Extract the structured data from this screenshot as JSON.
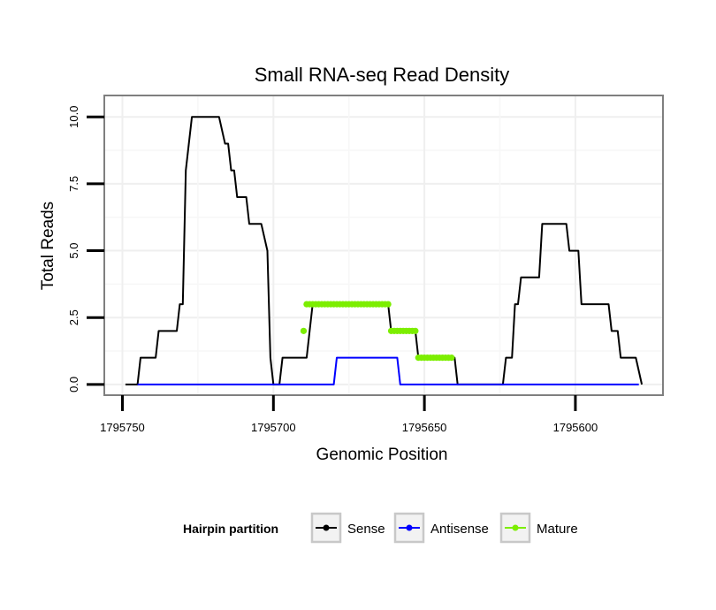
{
  "chart_data": {
    "type": "line",
    "title": "Small RNA-seq Read Density",
    "xlabel": "Genomic Position",
    "ylabel": "Total Reads",
    "x_reversed": true,
    "xlim": [
      1795756,
      1795571
    ],
    "ylim": [
      -0.4,
      10.8
    ],
    "x_ticks": [
      1795750,
      1795700,
      1795650,
      1795600
    ],
    "x_tick_labels": [
      "1795750",
      "1795700",
      "1795650",
      "1795600"
    ],
    "y_ticks": [
      0,
      2.5,
      5,
      7.5,
      10
    ],
    "y_tick_labels": [
      "0.0",
      "2.5",
      "5.0",
      "7.5",
      "10.0"
    ],
    "grid": true,
    "legend": {
      "title": "Hairpin partition",
      "placement": "bottom",
      "entries": [
        "Sense",
        "Antisense",
        "Mature"
      ]
    },
    "series": [
      {
        "name": "Sense",
        "color": "#000000",
        "style": "line",
        "points": [
          [
            1795749,
            0
          ],
          [
            1795745,
            0
          ],
          [
            1795744,
            1
          ],
          [
            1795739,
            1
          ],
          [
            1795738,
            2
          ],
          [
            1795732,
            2
          ],
          [
            1795731,
            3
          ],
          [
            1795730,
            3
          ],
          [
            1795729,
            8
          ],
          [
            1795727,
            10
          ],
          [
            1795718,
            10
          ],
          [
            1795716,
            9
          ],
          [
            1795715,
            9
          ],
          [
            1795714,
            8
          ],
          [
            1795713,
            8
          ],
          [
            1795712,
            7
          ],
          [
            1795709,
            7
          ],
          [
            1795708,
            6
          ],
          [
            1795704,
            6
          ],
          [
            1795702,
            5
          ],
          [
            1795701,
            1
          ],
          [
            1795700,
            0
          ],
          [
            1795698,
            0
          ],
          [
            1795697,
            1
          ],
          [
            1795689,
            1
          ],
          [
            1795688,
            2
          ],
          [
            1795687,
            3
          ],
          [
            1795662,
            3
          ],
          [
            1795661,
            2
          ],
          [
            1795653,
            2
          ],
          [
            1795652,
            1
          ],
          [
            1795640,
            1
          ],
          [
            1795639,
            0
          ],
          [
            1795624,
            0
          ],
          [
            1795623,
            1
          ],
          [
            1795621,
            1
          ],
          [
            1795620,
            3
          ],
          [
            1795619,
            3
          ],
          [
            1795618,
            4
          ],
          [
            1795612,
            4
          ],
          [
            1795611,
            6
          ],
          [
            1795603,
            6
          ],
          [
            1795602,
            5
          ],
          [
            1795599,
            5
          ],
          [
            1795598,
            3
          ],
          [
            1795589,
            3
          ],
          [
            1795588,
            2
          ],
          [
            1795586,
            2
          ],
          [
            1795585,
            1
          ],
          [
            1795580,
            1
          ],
          [
            1795578,
            0
          ]
        ]
      },
      {
        "name": "Antisense",
        "color": "#0000ff",
        "style": "line",
        "points": [
          [
            1795745,
            0
          ],
          [
            1795680,
            0
          ],
          [
            1795679,
            1
          ],
          [
            1795659,
            1
          ],
          [
            1795658,
            0
          ],
          [
            1795579,
            0
          ]
        ]
      },
      {
        "name": "Mature",
        "color": "#7cee00",
        "style": "points",
        "points": [
          [
            1795690,
            2
          ],
          [
            1795689,
            3
          ],
          [
            1795688,
            3
          ],
          [
            1795687,
            3
          ],
          [
            1795686,
            3
          ],
          [
            1795685,
            3
          ],
          [
            1795684,
            3
          ],
          [
            1795683,
            3
          ],
          [
            1795682,
            3
          ],
          [
            1795681,
            3
          ],
          [
            1795680,
            3
          ],
          [
            1795679,
            3
          ],
          [
            1795678,
            3
          ],
          [
            1795677,
            3
          ],
          [
            1795676,
            3
          ],
          [
            1795675,
            3
          ],
          [
            1795674,
            3
          ],
          [
            1795673,
            3
          ],
          [
            1795672,
            3
          ],
          [
            1795671,
            3
          ],
          [
            1795670,
            3
          ],
          [
            1795669,
            3
          ],
          [
            1795668,
            3
          ],
          [
            1795667,
            3
          ],
          [
            1795666,
            3
          ],
          [
            1795665,
            3
          ],
          [
            1795664,
            3
          ],
          [
            1795663,
            3
          ],
          [
            1795662,
            3
          ],
          [
            1795661,
            2
          ],
          [
            1795660,
            2
          ],
          [
            1795659,
            2
          ],
          [
            1795658,
            2
          ],
          [
            1795657,
            2
          ],
          [
            1795656,
            2
          ],
          [
            1795655,
            2
          ],
          [
            1795654,
            2
          ],
          [
            1795653,
            2
          ],
          [
            1795652,
            1
          ],
          [
            1795651,
            1
          ],
          [
            1795650,
            1
          ],
          [
            1795649,
            1
          ],
          [
            1795648,
            1
          ],
          [
            1795647,
            1
          ],
          [
            1795646,
            1
          ],
          [
            1795645,
            1
          ],
          [
            1795644,
            1
          ],
          [
            1795643,
            1
          ],
          [
            1795642,
            1
          ],
          [
            1795641,
            1
          ]
        ]
      }
    ]
  }
}
